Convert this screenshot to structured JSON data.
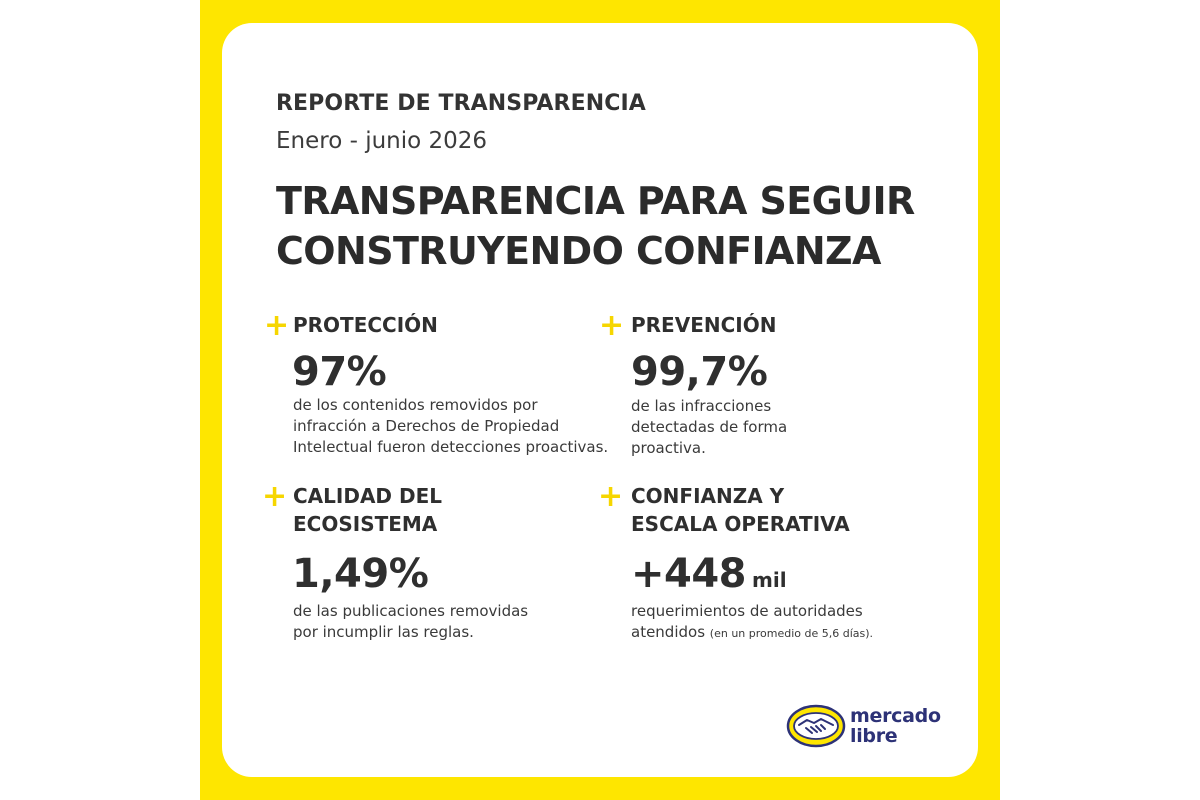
{
  "header": {
    "kicker": "REPORTE DE TRANSPARENCIA",
    "period": "Enero - junio 2026",
    "headline_line1": "TRANSPARENCIA PARA SEGUIR",
    "headline_line2": "CONSTRUYENDO CONFIANZA"
  },
  "sections": [
    {
      "title_lines": [
        "PROTECCIÓN"
      ],
      "value": "97%",
      "suffix": "",
      "desc_lines": [
        "de los contenidos removidos por",
        "infracción a Derechos de Propiedad",
        "Intelectual fueron detecciones proactivas."
      ],
      "note": ""
    },
    {
      "title_lines": [
        "PREVENCIÓN"
      ],
      "value": "99,7%",
      "suffix": "",
      "desc_lines": [
        "de las infracciones",
        "detectadas de forma",
        "proactiva."
      ],
      "note": ""
    },
    {
      "title_lines": [
        "CALIDAD DEL",
        "ECOSISTEMA"
      ],
      "value": "1,49%",
      "suffix": "",
      "desc_lines": [
        "de las publicaciones removidas",
        "por incumplir las reglas."
      ],
      "note": ""
    },
    {
      "title_lines": [
        "CONFIANZA Y",
        "ESCALA OPERATIVA"
      ],
      "value": "+448",
      "suffix": "mil",
      "desc_lines": [
        "requerimientos de autoridades",
        "atendidos"
      ],
      "note": "(en un promedio de 5,6 días)."
    }
  ],
  "plus_symbol": "+",
  "logo": {
    "line1": "mercado",
    "line2": "libre",
    "colors": {
      "yellow": "#fee600",
      "navy": "#2d3277"
    }
  },
  "colors": {
    "accent": "#fee600",
    "plus": "#f6d600",
    "text": "#2f2f2f"
  }
}
